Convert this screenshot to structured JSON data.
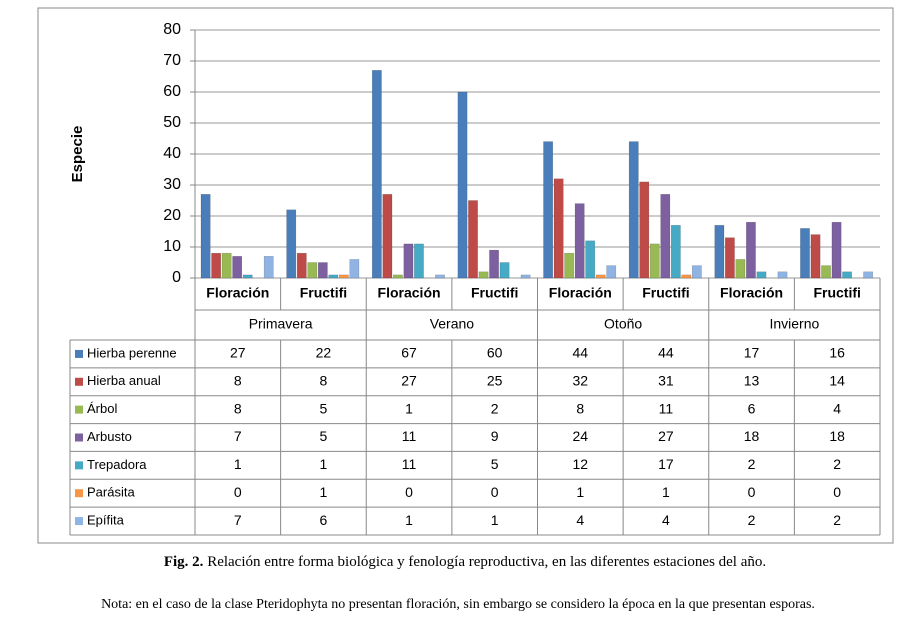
{
  "chart_data": {
    "type": "bar",
    "y_label": "Especie",
    "categories": [
      "Floración",
      "Fructifi",
      "Floración",
      "Fructifi",
      "Floración",
      "Fructifi",
      "Floración",
      "Fructifi"
    ],
    "groups": [
      "Primavera",
      "Verano",
      "Otoño",
      "Invierno"
    ],
    "series": [
      {
        "name": "Hierba perenne",
        "color": "#4a7ebb",
        "values": [
          27,
          22,
          67,
          60,
          44,
          44,
          17,
          16
        ]
      },
      {
        "name": "Hierba anual",
        "color": "#be4b48",
        "values": [
          8,
          8,
          27,
          25,
          32,
          31,
          13,
          14
        ]
      },
      {
        "name": "Árbol",
        "color": "#98b954",
        "values": [
          8,
          5,
          1,
          2,
          8,
          11,
          6,
          4
        ]
      },
      {
        "name": "Arbusto",
        "color": "#7d60a0",
        "values": [
          7,
          5,
          11,
          9,
          24,
          27,
          18,
          18
        ]
      },
      {
        "name": "Trepadora",
        "color": "#46aac5",
        "values": [
          1,
          1,
          11,
          5,
          12,
          17,
          2,
          2
        ]
      },
      {
        "name": "Parásita",
        "color": "#f79646",
        "values": [
          0,
          1,
          0,
          0,
          1,
          1,
          0,
          0
        ]
      },
      {
        "name": "Epífita",
        "color": "#8fb4e3",
        "values": [
          7,
          6,
          1,
          1,
          4,
          4,
          2,
          2
        ]
      }
    ],
    "ylim": [
      0,
      80
    ],
    "yticks": [
      0,
      10,
      20,
      30,
      40,
      50,
      60,
      70,
      80
    ],
    "grid": true,
    "caption_label": "Fig. 2.",
    "caption": "Relación entre forma biológica y fenología reproductiva, en las diferentes estaciones del año.",
    "note": "Nota: en el caso de la clase Pteridophyta no presentan floración, sin embargo se considero la época en la que presentan esporas."
  }
}
